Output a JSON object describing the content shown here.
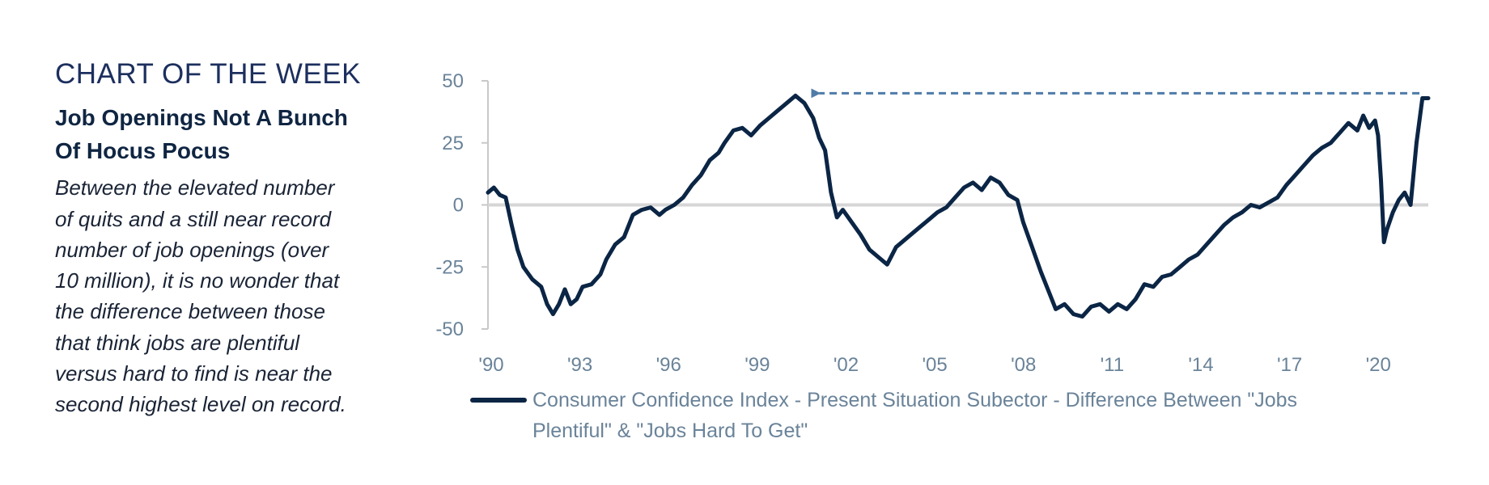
{
  "sidebar": {
    "kicker": "CHART OF THE WEEK",
    "headline_lines": [
      "Job Openings Not A Bunch",
      "Of Hocus Pocus"
    ],
    "body_lines": [
      "Between the elevated number",
      "of quits and a still near record",
      "number of job openings (over",
      "10 million), it is no wonder that",
      "the difference between those",
      "that think jobs are plentiful",
      "versus hard to find is near the",
      "second highest level on record."
    ]
  },
  "colors": {
    "series": "#0b2545",
    "arrow": "#4f7ca8",
    "zero_line": "#d6d6d6",
    "axis": "#c8c8c8",
    "tick_text": "#6a8399"
  },
  "chart_data": {
    "type": "line",
    "title": "",
    "xlabel": "",
    "ylabel": "",
    "x_tick_labels": [
      "'90",
      "'93",
      "'96",
      "'99",
      "'02",
      "'05",
      "'08",
      "'11",
      "'14",
      "'17",
      "'20"
    ],
    "x_ticks": [
      1990,
      1993,
      1996,
      1999,
      2002,
      2005,
      2008,
      2011,
      2014,
      2017,
      2020
    ],
    "y_ticks": [
      50,
      25,
      0,
      -25,
      -50
    ],
    "y_tick_labels": [
      "50",
      "25",
      "0",
      "-25",
      "-50"
    ],
    "ylim": [
      -50,
      50
    ],
    "xlim": [
      1990,
      2021.8
    ],
    "grid": false,
    "reference_line": 0,
    "series": [
      {
        "name": "Consumer Confidence Index - Present Situation Subector - Difference Between \"Jobs Plentiful\" & \"Jobs Hard To Get\"",
        "legend_lines": [
          "Consumer Confidence Index - Present Situation Subector - Difference Between \"Jobs",
          "Plentiful\" & \"Jobs Hard To Get\""
        ],
        "x": [
          1990.0,
          1990.2,
          1990.4,
          1990.6,
          1990.8,
          1991.0,
          1991.2,
          1991.5,
          1991.8,
          1992.0,
          1992.2,
          1992.4,
          1992.6,
          1992.8,
          1993.0,
          1993.2,
          1993.5,
          1993.8,
          1994.0,
          1994.3,
          1994.6,
          1994.9,
          1995.2,
          1995.5,
          1995.8,
          1996.0,
          1996.3,
          1996.6,
          1996.9,
          1997.2,
          1997.5,
          1997.8,
          1998.0,
          1998.3,
          1998.6,
          1998.9,
          1999.2,
          1999.5,
          1999.8,
          2000.1,
          2000.4,
          2000.7,
          2001.0,
          2001.2,
          2001.4,
          2001.6,
          2001.8,
          2002.0,
          2002.3,
          2002.6,
          2002.9,
          2003.2,
          2003.5,
          2003.8,
          2004.0,
          2004.3,
          2004.6,
          2004.9,
          2005.2,
          2005.5,
          2005.8,
          2006.1,
          2006.4,
          2006.7,
          2007.0,
          2007.3,
          2007.6,
          2007.9,
          2008.1,
          2008.4,
          2008.7,
          2009.0,
          2009.2,
          2009.5,
          2009.8,
          2010.1,
          2010.4,
          2010.7,
          2011.0,
          2011.3,
          2011.6,
          2011.9,
          2012.2,
          2012.5,
          2012.8,
          2013.1,
          2013.4,
          2013.7,
          2014.0,
          2014.3,
          2014.6,
          2014.9,
          2015.2,
          2015.5,
          2015.8,
          2016.1,
          2016.4,
          2016.7,
          2017.0,
          2017.3,
          2017.6,
          2017.9,
          2018.2,
          2018.5,
          2018.8,
          2019.1,
          2019.4,
          2019.6,
          2019.8,
          2020.0,
          2020.1,
          2020.2,
          2020.3,
          2020.4,
          2020.6,
          2020.8,
          2021.0,
          2021.2,
          2021.4,
          2021.6,
          2021.8
        ],
        "y": [
          5,
          7,
          4,
          3,
          -8,
          -18,
          -25,
          -30,
          -33,
          -40,
          -44,
          -40,
          -34,
          -40,
          -38,
          -33,
          -32,
          -28,
          -22,
          -16,
          -13,
          -4,
          -2,
          -1,
          -4,
          -2,
          0,
          3,
          8,
          12,
          18,
          21,
          25,
          30,
          31,
          28,
          32,
          35,
          38,
          41,
          44,
          41,
          35,
          27,
          22,
          5,
          -5,
          -2,
          -7,
          -12,
          -18,
          -21,
          -24,
          -17,
          -15,
          -12,
          -9,
          -6,
          -3,
          -1,
          3,
          7,
          9,
          6,
          11,
          9,
          4,
          2,
          -7,
          -17,
          -27,
          -36,
          -42,
          -40,
          -44,
          -45,
          -41,
          -40,
          -43,
          -40,
          -42,
          -38,
          -32,
          -33,
          -29,
          -28,
          -25,
          -22,
          -20,
          -16,
          -12,
          -8,
          -5,
          -3,
          0,
          -1,
          1,
          3,
          8,
          12,
          16,
          20,
          23,
          25,
          29,
          33,
          30,
          36,
          31,
          34,
          28,
          10,
          -15,
          -10,
          -3,
          2,
          5,
          0,
          25,
          43,
          43
        ]
      }
    ],
    "annotations": [
      {
        "type": "dashed-arrow",
        "from_x": 2021.5,
        "to_x": 2001.2,
        "y": 45
      }
    ]
  }
}
